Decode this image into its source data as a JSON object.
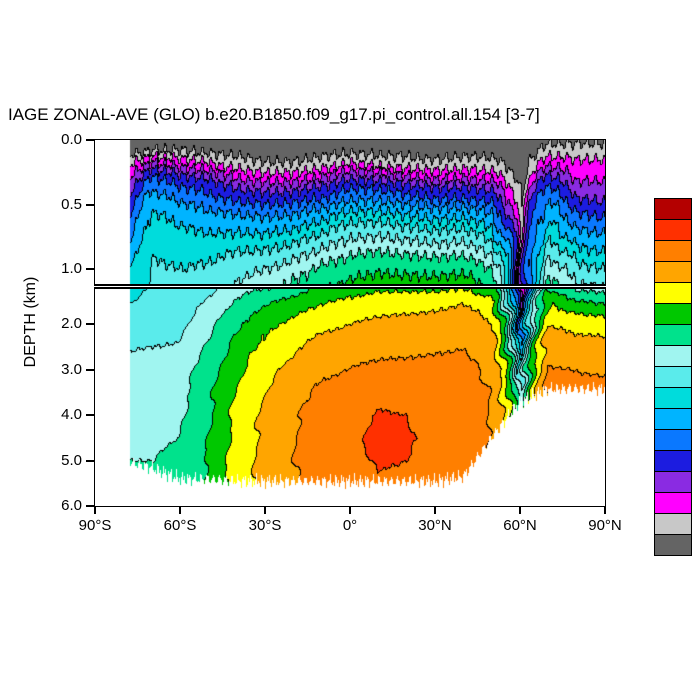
{
  "title": "IAGE ZONAL-AVE (GLO) b.e20.B1850.f09_g17.pi_control.all.154 [3-7]",
  "y_axis": {
    "label": "DEPTH (km)",
    "upper_ticks": [
      {
        "value": 0.0,
        "label": "0.0"
      },
      {
        "value": 0.5,
        "label": "0.5"
      },
      {
        "value": 1.0,
        "label": "1.0"
      }
    ],
    "lower_ticks": [
      {
        "value": 2.0,
        "label": "2.0"
      },
      {
        "value": 3.0,
        "label": "3.0"
      },
      {
        "value": 4.0,
        "label": "4.0"
      },
      {
        "value": 5.0,
        "label": "5.0"
      },
      {
        "value": 6.0,
        "label": "6.0"
      }
    ]
  },
  "x_axis": {
    "ticks": [
      {
        "value": -90,
        "label": "90°S"
      },
      {
        "value": -60,
        "label": "60°S"
      },
      {
        "value": -30,
        "label": "30°S"
      },
      {
        "value": 0,
        "label": "0°"
      },
      {
        "value": 30,
        "label": "30°N"
      },
      {
        "value": 60,
        "label": "60°N"
      },
      {
        "value": 90,
        "label": "90°N"
      }
    ]
  },
  "colorbar": {
    "colors_top_to_bottom": [
      "#B40000",
      "#FF3000",
      "#FF7F00",
      "#FFA500",
      "#FFFF00",
      "#00C800",
      "#00E28C",
      "#A0F5F0",
      "#5AEBEB",
      "#00DCDC",
      "#00B4FF",
      "#0A78FF",
      "#1C1CE0",
      "#8A2BE2",
      "#FF00FF",
      "#C8C8C8",
      "#646464"
    ]
  },
  "chart_data": {
    "type": "filled_contour_section",
    "title": "IAGE ZONAL-AVE (GLO) b.e20.B1850.f09_g17.pi_control.all.154 [3-7]",
    "ylabel": "DEPTH (km)",
    "x_tick_labels": [
      "90°S",
      "60°S",
      "30°S",
      "0°",
      "30°N",
      "60°N",
      "90°N"
    ],
    "x_range_deg": [
      -90,
      90
    ],
    "panel_upper_depth_km": [
      0,
      1.115
    ],
    "panel_lower_depth_km": [
      1.23,
      6.0
    ],
    "panel_break_km": 1.2,
    "legend_position": "right-colorbar",
    "grid_on": false,
    "levels": [
      3,
      8,
      15,
      25,
      40,
      60,
      85,
      110,
      140,
      170,
      210,
      260,
      330,
      430,
      530,
      610
    ],
    "palette_young_to_old": [
      "#646464",
      "#C8C8C8",
      "#FF00FF",
      "#8A2BE2",
      "#1C1CE0",
      "#0A78FF",
      "#00B4FF",
      "#00DCDC",
      "#5AEBEB",
      "#A0F5F0",
      "#00E28C",
      "#00C800",
      "#FFFF00",
      "#FFA500",
      "#FF7F00",
      "#FF3000",
      "#B40000"
    ],
    "grid": {
      "lat_min_data": -77.5,
      "lats": [
        -90,
        -80,
        -70,
        -60,
        -50,
        -40,
        -30,
        -20,
        -10,
        0,
        10,
        20,
        30,
        40,
        50,
        60,
        70,
        80,
        90
      ],
      "depths_km": [
        0,
        0.1,
        0.2,
        0.3,
        0.45,
        0.6,
        0.8,
        1.0,
        1.25,
        1.6,
        2.0,
        2.5,
        3.0,
        3.5,
        4.0,
        4.5,
        5.0,
        5.5
      ],
      "floor_km": [
        5.0,
        5.0,
        5.15,
        5.4,
        5.4,
        5.45,
        5.45,
        5.45,
        5.45,
        5.45,
        5.45,
        5.45,
        5.45,
        5.35,
        4.5,
        3.7,
        3.42,
        3.42,
        3.42
      ],
      "age_years": [
        [
          0,
          2,
          5,
          10,
          18,
          30,
          50,
          70,
          90,
          108,
          122,
          138,
          148,
          158,
          163,
          168,
          170,
          172
        ],
        [
          0,
          2,
          5,
          10,
          18,
          30,
          50,
          70,
          90,
          108,
          122,
          138,
          148,
          158,
          163,
          168,
          170,
          172
        ],
        [
          0,
          4,
          20,
          45,
          70,
          90,
          105,
          115,
          120,
          126,
          132,
          140,
          148,
          156,
          162,
          167,
          170,
          172
        ],
        [
          0,
          4,
          14,
          30,
          55,
          80,
          98,
          110,
          118,
          125,
          132,
          142,
          152,
          160,
          166,
          170,
          174,
          176
        ],
        [
          0,
          3,
          10,
          25,
          45,
          70,
          95,
          115,
          132,
          148,
          162,
          176,
          186,
          196,
          205,
          210,
          214,
          217
        ],
        [
          0,
          2,
          6,
          15,
          35,
          65,
          100,
          132,
          156,
          182,
          206,
          230,
          250,
          265,
          274,
          280,
          283,
          285
        ],
        [
          0,
          1,
          4,
          12,
          30,
          60,
          100,
          140,
          175,
          210,
          245,
          280,
          310,
          330,
          344,
          354,
          358,
          356
        ],
        [
          0,
          1,
          4,
          12,
          32,
          65,
          110,
          155,
          195,
          235,
          275,
          318,
          358,
          392,
          418,
          428,
          428,
          420
        ],
        [
          0,
          2,
          6,
          16,
          40,
          80,
          130,
          180,
          225,
          268,
          310,
          358,
          408,
          448,
          474,
          484,
          478,
          465
        ],
        [
          0,
          3,
          10,
          25,
          55,
          100,
          150,
          195,
          240,
          285,
          330,
          385,
          435,
          478,
          503,
          512,
          502,
          488
        ],
        [
          0,
          2,
          8,
          22,
          55,
          100,
          155,
          205,
          255,
          305,
          350,
          400,
          455,
          505,
          540,
          554,
          542,
          518
        ],
        [
          0,
          2,
          6,
          18,
          45,
          90,
          148,
          200,
          255,
          310,
          355,
          405,
          458,
          502,
          528,
          538,
          528,
          508
        ],
        [
          0,
          1,
          5,
          14,
          38,
          80,
          140,
          198,
          255,
          315,
          365,
          415,
          462,
          495,
          512,
          512,
          498,
          478
        ],
        [
          0,
          2,
          6,
          16,
          40,
          85,
          145,
          200,
          265,
          340,
          392,
          428,
          468,
          498,
          505,
          498,
          482,
          468
        ],
        [
          0,
          2,
          5,
          13,
          32,
          65,
          115,
          170,
          230,
          285,
          330,
          372,
          402,
          420,
          424,
          418,
          410,
          405
        ],
        [
          0,
          0,
          1,
          1,
          2,
          2,
          3,
          5,
          8,
          15,
          30,
          60,
          100,
          140,
          170,
          190,
          205,
          215
        ],
        [
          2,
          6,
          15,
          30,
          55,
          85,
          120,
          160,
          210,
          268,
          328,
          388,
          438,
          465,
          475,
          478,
          480,
          480
        ],
        [
          2,
          6,
          10,
          14,
          25,
          45,
          80,
          120,
          170,
          230,
          300,
          370,
          428,
          458,
          468,
          472,
          474,
          474
        ],
        [
          2,
          6,
          10,
          14,
          22,
          40,
          72,
          110,
          160,
          220,
          292,
          362,
          420,
          452,
          462,
          466,
          468,
          468
        ]
      ]
    }
  }
}
